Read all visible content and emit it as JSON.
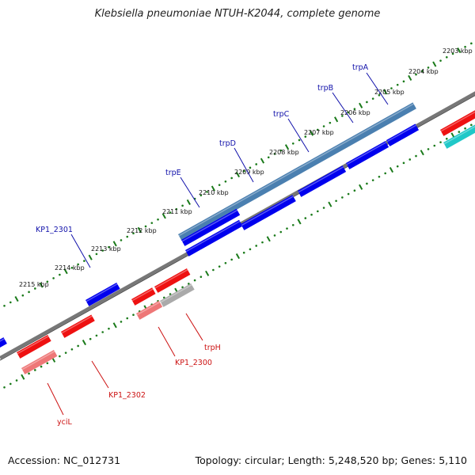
{
  "title": "Klebsiella pneumoniae NTUH-K2044, complete genome",
  "footer": {
    "accession": "Accession: NC_012731",
    "topology": "Topology: circular; Length: 5,248,520 bp; Genes: 5,110"
  },
  "colors": {
    "forward_gene": "#0000ee",
    "reverse_gene": "#ee1111",
    "reverse_pseudo": "#ee7777",
    "grey_gene": "#aaaaaa",
    "operon": "#4a7fb0",
    "cyan_gene": "#20c8c8",
    "forward_label": "#1010aa",
    "reverse_label": "#cc1111",
    "dot_ring": "#1a7a1a",
    "backbone": "#777777"
  },
  "ticks": [
    "2203 kbp",
    "2204 kbp",
    "2205 kbp",
    "2206 kbp",
    "2207 kbp",
    "2208 kbp",
    "2209 kbp",
    "2210 kbp",
    "2211 kbp",
    "2212 kbp",
    "2213 kbp",
    "2214 kbp",
    "2215 kbp"
  ],
  "labels": [
    {
      "text": "trpA",
      "strand": "forward"
    },
    {
      "text": "trpB",
      "strand": "forward"
    },
    {
      "text": "trpC",
      "strand": "forward"
    },
    {
      "text": "trpD",
      "strand": "forward"
    },
    {
      "text": "trpE",
      "strand": "forward"
    },
    {
      "text": "KP1_2301",
      "strand": "forward"
    },
    {
      "text": "trpH",
      "strand": "reverse"
    },
    {
      "text": "KP1_2300",
      "strand": "reverse"
    },
    {
      "text": "KP1_2302",
      "strand": "reverse"
    },
    {
      "text": "yciL",
      "strand": "reverse"
    }
  ]
}
